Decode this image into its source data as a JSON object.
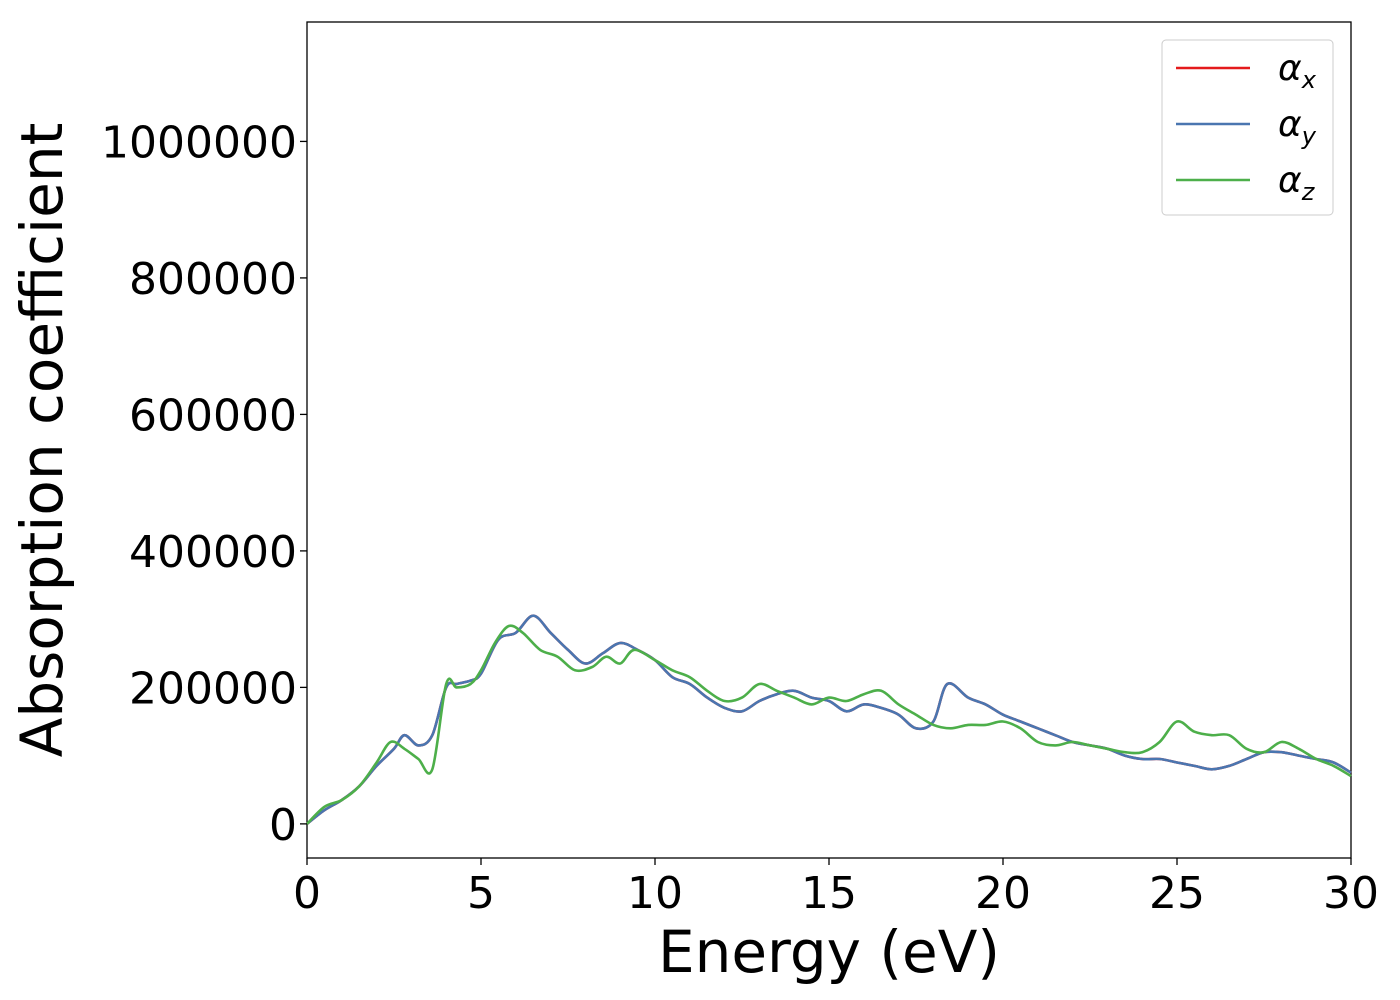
{
  "chart_data": {
    "type": "line",
    "xlabel": "Energy (eV)",
    "ylabel": "Absorption coefficient",
    "xlim": [
      0,
      30
    ],
    "ylim": [
      -50000,
      1175000
    ],
    "xticks": [
      0,
      5,
      10,
      15,
      20,
      25,
      30
    ],
    "xtick_labels": [
      "0",
      "5",
      "10",
      "15",
      "20",
      "25",
      "30"
    ],
    "yticks": [
      0,
      200000,
      400000,
      600000,
      800000,
      1000000
    ],
    "ytick_labels": [
      "0",
      "200000",
      "400000",
      "600000",
      "800000",
      "1000000"
    ],
    "grid": false,
    "legend_position": "top-right",
    "series": [
      {
        "name": "α_x",
        "legend_base": "α",
        "legend_sub": "x",
        "color": "#e41a1c",
        "x": [
          0,
          0.5,
          1,
          1.5,
          2,
          2.5,
          2.8,
          3.2,
          3.6,
          4,
          4.3,
          4.7,
          5,
          5.5,
          6,
          6.5,
          7,
          7.5,
          8,
          8.5,
          9,
          9.5,
          10,
          10.5,
          11,
          11.5,
          12,
          12.5,
          13,
          13.5,
          14,
          14.5,
          15,
          15.5,
          16,
          16.5,
          17,
          17.5,
          18,
          18.4,
          19,
          19.5,
          20,
          20.5,
          21,
          21.5,
          22,
          22.5,
          23,
          23.5,
          24,
          24.5,
          25,
          25.5,
          26,
          26.5,
          27,
          27.5,
          28,
          28.5,
          29,
          29.5,
          30
        ],
        "y": [
          0,
          20000,
          35000,
          55000,
          85000,
          110000,
          130000,
          115000,
          130000,
          200000,
          205000,
          210000,
          220000,
          270000,
          280000,
          305000,
          280000,
          255000,
          235000,
          250000,
          265000,
          255000,
          240000,
          215000,
          205000,
          185000,
          170000,
          165000,
          180000,
          190000,
          195000,
          185000,
          180000,
          165000,
          175000,
          170000,
          160000,
          140000,
          150000,
          205000,
          185000,
          175000,
          160000,
          150000,
          140000,
          130000,
          120000,
          115000,
          110000,
          100000,
          95000,
          95000,
          90000,
          85000,
          80000,
          85000,
          95000,
          105000,
          105000,
          100000,
          95000,
          90000,
          75000
        ]
      },
      {
        "name": "α_y",
        "legend_base": "α",
        "legend_sub": "y",
        "color": "#4a76b0",
        "x": [
          0,
          0.5,
          1,
          1.5,
          2,
          2.5,
          2.8,
          3.2,
          3.6,
          4,
          4.3,
          4.7,
          5,
          5.5,
          6,
          6.5,
          7,
          7.5,
          8,
          8.5,
          9,
          9.5,
          10,
          10.5,
          11,
          11.5,
          12,
          12.5,
          13,
          13.5,
          14,
          14.5,
          15,
          15.5,
          16,
          16.5,
          17,
          17.5,
          18,
          18.4,
          19,
          19.5,
          20,
          20.5,
          21,
          21.5,
          22,
          22.5,
          23,
          23.5,
          24,
          24.5,
          25,
          25.5,
          26,
          26.5,
          27,
          27.5,
          28,
          28.5,
          29,
          29.5,
          30
        ],
        "y": [
          0,
          20000,
          35000,
          55000,
          85000,
          110000,
          130000,
          115000,
          130000,
          200000,
          205000,
          210000,
          220000,
          270000,
          280000,
          305000,
          280000,
          255000,
          235000,
          250000,
          265000,
          255000,
          240000,
          215000,
          205000,
          185000,
          170000,
          165000,
          180000,
          190000,
          195000,
          185000,
          180000,
          165000,
          175000,
          170000,
          160000,
          140000,
          150000,
          205000,
          185000,
          175000,
          160000,
          150000,
          140000,
          130000,
          120000,
          115000,
          110000,
          100000,
          95000,
          95000,
          90000,
          85000,
          80000,
          85000,
          95000,
          105000,
          105000,
          100000,
          95000,
          90000,
          75000
        ]
      },
      {
        "name": "α_z",
        "legend_base": "α",
        "legend_sub": "z",
        "color": "#4daf4a",
        "x": [
          0,
          0.5,
          1,
          1.5,
          2,
          2.4,
          2.8,
          3.2,
          3.6,
          4,
          4.3,
          4.7,
          5,
          5.4,
          5.8,
          6.2,
          6.7,
          7.2,
          7.7,
          8.2,
          8.6,
          9,
          9.4,
          10,
          10.5,
          11,
          11.5,
          12,
          12.5,
          13,
          13.5,
          14,
          14.5,
          15,
          15.5,
          16,
          16.5,
          17,
          17.5,
          18,
          18.5,
          19,
          19.5,
          20,
          20.5,
          21,
          21.5,
          22,
          22.5,
          23,
          23.5,
          24,
          24.5,
          25,
          25.5,
          26,
          26.5,
          27,
          27.5,
          28,
          28.5,
          29,
          29.5,
          30
        ],
        "y": [
          0,
          25000,
          35000,
          55000,
          90000,
          120000,
          110000,
          95000,
          80000,
          205000,
          200000,
          205000,
          225000,
          265000,
          290000,
          280000,
          255000,
          245000,
          225000,
          230000,
          245000,
          235000,
          255000,
          240000,
          225000,
          215000,
          195000,
          180000,
          185000,
          205000,
          195000,
          185000,
          175000,
          185000,
          180000,
          190000,
          195000,
          175000,
          160000,
          145000,
          140000,
          145000,
          145000,
          150000,
          140000,
          120000,
          115000,
          120000,
          115000,
          110000,
          105000,
          105000,
          120000,
          150000,
          135000,
          130000,
          130000,
          110000,
          105000,
          120000,
          110000,
          95000,
          85000,
          70000
        ]
      }
    ]
  }
}
